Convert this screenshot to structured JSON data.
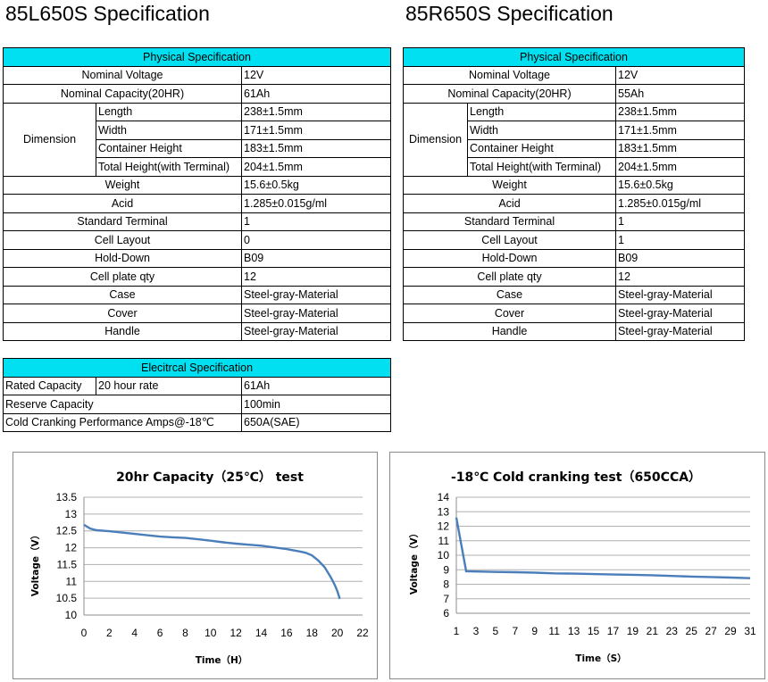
{
  "left_title": "85L650S Specification",
  "right_title": "85R650S Specification",
  "left_physical": {
    "header": "Physical Specification",
    "nominal_voltage": {
      "label": "Nominal Voltage",
      "value": "12V"
    },
    "nominal_capacity": {
      "label": "Nominal Capacity(20HR)",
      "value": "61Ah"
    },
    "dimension": {
      "label": "Dimension",
      "rows": [
        {
          "label": "Length",
          "value": "238±1.5mm"
        },
        {
          "label": "Width",
          "value": "171±1.5mm"
        },
        {
          "label": "Container Height",
          "value": "183±1.5mm"
        },
        {
          "label": "Total Height(with Terminal)",
          "value": "204±1.5mm"
        }
      ]
    },
    "rows": [
      {
        "label": "Weight",
        "value": "15.6±0.5kg"
      },
      {
        "label": "Acid",
        "value": "1.285±0.015g/ml"
      },
      {
        "label": "Standard Terminal",
        "value": "1"
      },
      {
        "label": "Cell Layout",
        "value": "0"
      },
      {
        "label": "Hold-Down",
        "value": "B09"
      },
      {
        "label": "Cell plate qty",
        "value": "12"
      },
      {
        "label": "Case",
        "value": "Steel-gray-Material"
      },
      {
        "label": "Cover",
        "value": "Steel-gray-Material"
      },
      {
        "label": "Handle",
        "value": "Steel-gray-Material"
      }
    ]
  },
  "right_physical": {
    "header": "Physical Specification",
    "nominal_voltage": {
      "label": "Nominal Voltage",
      "value": "12V"
    },
    "nominal_capacity": {
      "label": "Nominal Capacity(20HR)",
      "value": "55Ah"
    },
    "dimension": {
      "label": "Dimension",
      "rows": [
        {
          "label": "Length",
          "value": "238±1.5mm"
        },
        {
          "label": "Width",
          "value": "171±1.5mm"
        },
        {
          "label": "Container Height",
          "value": "183±1.5mm"
        },
        {
          "label": "Total Height(with Terminal)",
          "value": "204±1.5mm"
        }
      ]
    },
    "rows": [
      {
        "label": "Weight",
        "value": "15.6±0.5kg"
      },
      {
        "label": "Acid",
        "value": "1.285±0.015g/ml"
      },
      {
        "label": "Standard Terminal",
        "value": "1"
      },
      {
        "label": "Cell Layout",
        "value": "1"
      },
      {
        "label": "Hold-Down",
        "value": "B09"
      },
      {
        "label": "Cell plate qty",
        "value": "12"
      },
      {
        "label": "Case",
        "value": "Steel-gray-Material"
      },
      {
        "label": "Cover",
        "value": "Steel-gray-Material"
      },
      {
        "label": "Handle",
        "value": "Steel-gray-Material"
      }
    ]
  },
  "electrical": {
    "header": "Elecitrcal Specification",
    "rated_capacity": {
      "label": "Rated Capacity",
      "sub": "20 hour rate",
      "value": "61Ah"
    },
    "reserve_capacity": {
      "label": "Reserve Capacity",
      "value": "100min"
    },
    "cold_cranking": {
      "label": "Cold Cranking Performance Amps@-18℃",
      "value": "650A(SAE)"
    }
  },
  "colors": {
    "header_bg": "#00e0f0",
    "line": "#4a7ebb",
    "grid": "#b0b0b0"
  },
  "chart_data": [
    {
      "type": "line",
      "title": "20hr Capacity（25℃） test",
      "xlabel": "Time（H）",
      "ylabel": "Voltage（V）",
      "xlim": [
        0,
        22
      ],
      "ylim": [
        10,
        13.5
      ],
      "xticks": [
        "0",
        "2",
        "4",
        "6",
        "8",
        "10",
        "12",
        "14",
        "16",
        "18",
        "20",
        "22"
      ],
      "yticks": [
        "10",
        "10.5",
        "11",
        "11.5",
        "12",
        "12.5",
        "13",
        "13.5"
      ],
      "grid": true,
      "series": [
        {
          "x": [
            0,
            0.5,
            1,
            2,
            3,
            4,
            5,
            6,
            7,
            8,
            9,
            10,
            11,
            12,
            13,
            14,
            15,
            16,
            17,
            17.5,
            18,
            18.5,
            19,
            19.5,
            19.8,
            20.0,
            20.1,
            20.2
          ],
          "y": [
            12.68,
            12.57,
            12.52,
            12.49,
            12.45,
            12.41,
            12.37,
            12.33,
            12.31,
            12.29,
            12.25,
            12.21,
            12.16,
            12.12,
            12.09,
            12.06,
            12.01,
            11.96,
            11.89,
            11.85,
            11.77,
            11.62,
            11.42,
            11.12,
            10.9,
            10.72,
            10.6,
            10.48
          ]
        }
      ]
    },
    {
      "type": "line",
      "title": "-18℃ Cold cranking test（650CCA）",
      "xlabel": "Time（S）",
      "ylabel": "Voltage（V）",
      "xlim": [
        1,
        31
      ],
      "ylim": [
        6,
        14
      ],
      "xticks": [
        "1",
        "3",
        "5",
        "7",
        "9",
        "11",
        "13",
        "15",
        "17",
        "19",
        "21",
        "23",
        "25",
        "27",
        "29",
        "31"
      ],
      "yticks": [
        "6",
        "7",
        "8",
        "9",
        "10",
        "11",
        "12",
        "13",
        "14"
      ],
      "grid": true,
      "series": [
        {
          "x": [
            1,
            2,
            3,
            5,
            7,
            9,
            11,
            13,
            15,
            17,
            19,
            21,
            23,
            25,
            27,
            29,
            31
          ],
          "y": [
            12.6,
            8.9,
            8.88,
            8.85,
            8.83,
            8.8,
            8.75,
            8.73,
            8.7,
            8.67,
            8.65,
            8.62,
            8.57,
            8.53,
            8.5,
            8.46,
            8.42
          ]
        }
      ]
    }
  ]
}
